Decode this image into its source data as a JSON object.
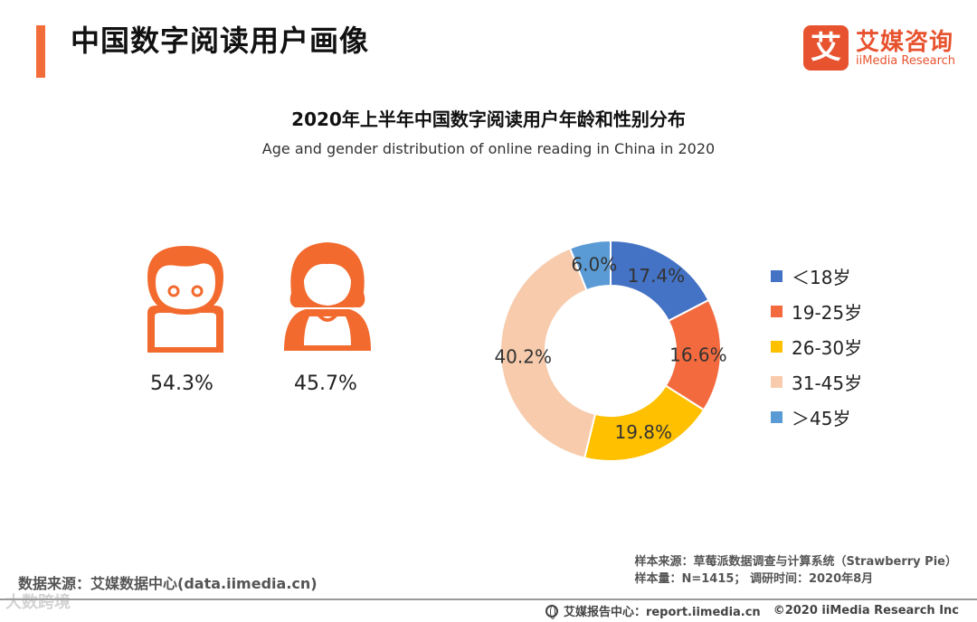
{
  "header": {
    "title": "中国数字阅读用户画像",
    "logo_mark": "艾",
    "logo_cn": "艾媒咨询",
    "logo_en": "iiMedia Research"
  },
  "chart_title": "2020年上半年中国数字阅读用户年龄和性别分布",
  "chart_subtitle": "Age and gender distribution of online reading in China in 2020",
  "gender": {
    "male": {
      "icon": "male-user-icon",
      "value": "54.3%"
    },
    "female": {
      "icon": "female-user-icon",
      "value": "45.7%"
    }
  },
  "chart_data": {
    "type": "pie",
    "donut": true,
    "title": "2020年上半年中国数字阅读用户年龄和性别分布",
    "subtitle": "Age and gender distribution of online reading in China in 2020",
    "categories": [
      "＜18岁",
      "19-25岁",
      "26-30岁",
      "31-45岁",
      "＞45岁"
    ],
    "values": [
      17.4,
      16.6,
      19.8,
      40.2,
      6.0
    ],
    "labels": [
      "17.4%",
      "16.6%",
      "19.8%",
      "40.2%",
      "6.0%"
    ],
    "colors": [
      "#4472c4",
      "#f36a3e",
      "#ffc000",
      "#f7cbac",
      "#5b9bd5"
    ],
    "legend_position": "right"
  },
  "sources": {
    "sample_source": "样本来源：草莓派数据调查与计算系统（Strawberry Pie）",
    "sample_size": "样本量：N=1415；  调研时间：2020年8月",
    "data_source": "数据来源：艾媒数据中心(data.iimedia.cn)"
  },
  "footer": {
    "report_center": "艾媒报告中心：report.iimedia.cn",
    "copyright": "©2020  iiMedia Research  Inc"
  },
  "watermark": "大数跨境"
}
